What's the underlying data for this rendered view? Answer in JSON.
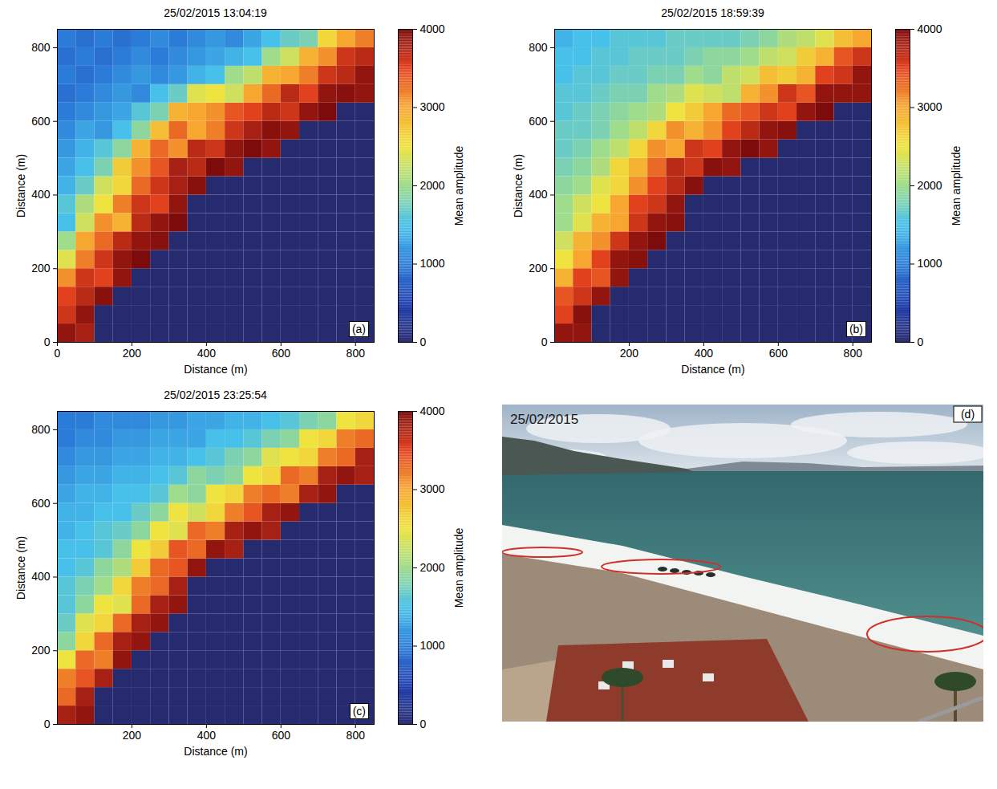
{
  "chart_data": [
    {
      "type": "heatmap",
      "title": "25/02/2015 13:04:19",
      "panel": "(a)",
      "x_label": "Distance (m)",
      "y_label": "Distance (m)",
      "xlim": [
        0,
        850
      ],
      "ylim": [
        0,
        850
      ],
      "xticks": [
        0,
        200,
        400,
        600,
        800
      ],
      "yticks": [
        0,
        200,
        400,
        600,
        800
      ],
      "x": [
        25,
        75,
        125,
        175,
        225,
        275,
        325,
        375,
        425,
        475,
        525,
        575,
        625,
        675,
        725,
        775,
        825
      ],
      "y": [
        25,
        75,
        125,
        175,
        225,
        275,
        325,
        375,
        425,
        475,
        525,
        575,
        625,
        675,
        725,
        775,
        825
      ],
      "cells": [
        [
          3900,
          3800,
          0,
          0,
          0,
          0,
          0,
          0,
          0,
          0,
          0,
          0,
          0,
          0,
          0,
          0,
          0
        ],
        [
          3600,
          3900,
          0,
          0,
          0,
          0,
          0,
          0,
          0,
          0,
          0,
          0,
          0,
          0,
          0,
          0,
          0
        ],
        [
          3500,
          3700,
          3950,
          0,
          0,
          0,
          0,
          0,
          0,
          0,
          0,
          0,
          0,
          0,
          0,
          0,
          0
        ],
        [
          3100,
          3600,
          3500,
          3900,
          0,
          0,
          0,
          0,
          0,
          0,
          0,
          0,
          0,
          0,
          0,
          0,
          0
        ],
        [
          2400,
          3200,
          3600,
          3900,
          4000,
          0,
          0,
          0,
          0,
          0,
          0,
          0,
          0,
          0,
          0,
          0,
          0
        ],
        [
          2000,
          3000,
          3300,
          3700,
          3900,
          3950,
          0,
          0,
          0,
          0,
          0,
          0,
          0,
          0,
          0,
          0,
          0
        ],
        [
          1500,
          2300,
          3100,
          2900,
          3700,
          3900,
          4000,
          0,
          0,
          0,
          0,
          0,
          0,
          0,
          0,
          0,
          0
        ],
        [
          1600,
          2100,
          2500,
          3200,
          3600,
          3500,
          3900,
          0,
          0,
          0,
          0,
          0,
          0,
          0,
          0,
          0,
          0
        ],
        [
          1400,
          1700,
          2300,
          2600,
          3300,
          3600,
          3800,
          3950,
          0,
          0,
          0,
          0,
          0,
          0,
          0,
          0,
          0
        ],
        [
          1300,
          1500,
          1800,
          2700,
          3100,
          3400,
          3800,
          3700,
          4000,
          3900,
          0,
          0,
          0,
          0,
          0,
          0,
          0
        ],
        [
          1200,
          1400,
          1600,
          1900,
          2900,
          3300,
          3100,
          3700,
          3600,
          3900,
          4000,
          3900,
          0,
          0,
          0,
          0,
          0
        ],
        [
          1100,
          1300,
          1200,
          1500,
          1900,
          2800,
          3300,
          3000,
          3200,
          3600,
          3800,
          3950,
          3900,
          0,
          0,
          0,
          0
        ],
        [
          1000,
          1100,
          1200,
          1300,
          1600,
          1800,
          2900,
          3000,
          3100,
          3400,
          3500,
          3700,
          3600,
          3900,
          4000,
          0,
          0
        ],
        [
          900,
          1000,
          1100,
          1200,
          1100,
          1500,
          1700,
          2400,
          2500,
          2300,
          3000,
          3300,
          3700,
          3500,
          3900,
          3950,
          3900
        ],
        [
          1000,
          900,
          1000,
          1100,
          1200,
          1100,
          1200,
          1400,
          1500,
          2000,
          2200,
          2900,
          3000,
          3200,
          3600,
          3700,
          3900
        ],
        [
          900,
          1000,
          900,
          1000,
          1100,
          1000,
          1100,
          1200,
          1300,
          1400,
          1500,
          2000,
          2300,
          2900,
          3100,
          3600,
          3700
        ],
        [
          1000,
          900,
          1000,
          900,
          1000,
          1100,
          1000,
          1100,
          1200,
          1100,
          1300,
          1500,
          1700,
          1800,
          2600,
          3000,
          3200
        ]
      ],
      "colorbar": {
        "label": "Mean amplitude",
        "range": [
          0,
          4000
        ],
        "ticks": [
          0,
          1000,
          2000,
          3000,
          4000
        ]
      }
    },
    {
      "type": "heatmap",
      "title": "25/02/2015 18:59:39",
      "panel": "(b)",
      "x_label": "Distance (m)",
      "y_label": "Distance (m)",
      "xlim": [
        0,
        850
      ],
      "ylim": [
        0,
        850
      ],
      "xticks": [
        200,
        400,
        600,
        800
      ],
      "yticks": [
        0,
        200,
        400,
        600,
        800
      ],
      "x": [
        25,
        75,
        125,
        175,
        225,
        275,
        325,
        375,
        425,
        475,
        525,
        575,
        625,
        675,
        725,
        775,
        825
      ],
      "y": [
        25,
        75,
        125,
        175,
        225,
        275,
        325,
        375,
        425,
        475,
        525,
        575,
        625,
        675,
        725,
        775,
        825
      ],
      "cells": [
        [
          3900,
          3900,
          0,
          0,
          0,
          0,
          0,
          0,
          0,
          0,
          0,
          0,
          0,
          0,
          0,
          0,
          0
        ],
        [
          3500,
          3950,
          0,
          0,
          0,
          0,
          0,
          0,
          0,
          0,
          0,
          0,
          0,
          0,
          0,
          0,
          0
        ],
        [
          3400,
          3600,
          3900,
          0,
          0,
          0,
          0,
          0,
          0,
          0,
          0,
          0,
          0,
          0,
          0,
          0,
          0
        ],
        [
          2900,
          3500,
          3400,
          3900,
          0,
          0,
          0,
          0,
          0,
          0,
          0,
          0,
          0,
          0,
          0,
          0,
          0
        ],
        [
          2500,
          3000,
          3500,
          3900,
          3950,
          0,
          0,
          0,
          0,
          0,
          0,
          0,
          0,
          0,
          0,
          0,
          0
        ],
        [
          2300,
          2900,
          3100,
          3600,
          3900,
          4000,
          0,
          0,
          0,
          0,
          0,
          0,
          0,
          0,
          0,
          0,
          0
        ],
        [
          2000,
          2400,
          2900,
          3000,
          3600,
          3900,
          3950,
          0,
          0,
          0,
          0,
          0,
          0,
          0,
          0,
          0,
          0
        ],
        [
          2000,
          2300,
          2500,
          3000,
          3500,
          3600,
          3900,
          0,
          0,
          0,
          0,
          0,
          0,
          0,
          0,
          0,
          0
        ],
        [
          1900,
          2000,
          2400,
          2600,
          3100,
          3500,
          3700,
          3950,
          0,
          0,
          0,
          0,
          0,
          0,
          0,
          0,
          0
        ],
        [
          1800,
          1900,
          2100,
          2600,
          2900,
          3300,
          3700,
          3600,
          3950,
          3900,
          0,
          0,
          0,
          0,
          0,
          0,
          0
        ],
        [
          1700,
          1800,
          2000,
          2200,
          2600,
          3100,
          3000,
          3600,
          3500,
          3900,
          4000,
          3900,
          0,
          0,
          0,
          0,
          0
        ],
        [
          1700,
          1700,
          1800,
          2000,
          2200,
          2600,
          3100,
          2900,
          3100,
          3500,
          3700,
          3900,
          3950,
          0,
          0,
          0,
          0
        ],
        [
          1600,
          1700,
          1800,
          1900,
          2000,
          2100,
          2500,
          2700,
          3000,
          3300,
          3400,
          3600,
          3500,
          3900,
          4000,
          0,
          0
        ],
        [
          1600,
          1600,
          1700,
          1800,
          1800,
          2000,
          2100,
          2400,
          2300,
          2200,
          2900,
          3100,
          3600,
          3400,
          3900,
          3900,
          3900
        ],
        [
          1500,
          1600,
          1600,
          1700,
          1700,
          1800,
          1800,
          2000,
          1900,
          2200,
          2300,
          2800,
          2700,
          2900,
          3500,
          3600,
          3900
        ],
        [
          1500,
          1500,
          1600,
          1600,
          1700,
          1700,
          1700,
          1800,
          1900,
          1900,
          2000,
          2200,
          2300,
          2700,
          2900,
          3400,
          3600
        ],
        [
          1400,
          1500,
          1500,
          1600,
          1600,
          1600,
          1700,
          1700,
          1700,
          1700,
          1800,
          1900,
          2100,
          2200,
          2400,
          2800,
          3000
        ]
      ],
      "colorbar": {
        "label": "Mean amplitude",
        "range": [
          0,
          4000
        ],
        "ticks": [
          0,
          1000,
          2000,
          3000,
          4000
        ]
      }
    },
    {
      "type": "heatmap",
      "title": "25/02/2015 23:25:54",
      "panel": "(c)",
      "x_label": "Distance (m)",
      "y_label": "Distance (m)",
      "xlim": [
        0,
        850
      ],
      "ylim": [
        0,
        850
      ],
      "xticks": [
        200,
        400,
        600,
        800
      ],
      "yticks": [
        0,
        200,
        400,
        600,
        800
      ],
      "x": [
        25,
        75,
        125,
        175,
        225,
        275,
        325,
        375,
        425,
        475,
        525,
        575,
        625,
        675,
        725,
        775,
        825
      ],
      "y": [
        25,
        75,
        125,
        175,
        225,
        275,
        325,
        375,
        425,
        475,
        525,
        575,
        625,
        675,
        725,
        775,
        825
      ],
      "cells": [
        [
          3800,
          3900,
          0,
          0,
          0,
          0,
          0,
          0,
          0,
          0,
          0,
          0,
          0,
          0,
          0,
          0,
          0
        ],
        [
          3300,
          3800,
          0,
          0,
          0,
          0,
          0,
          0,
          0,
          0,
          0,
          0,
          0,
          0,
          0,
          0,
          0
        ],
        [
          3200,
          3400,
          3800,
          0,
          0,
          0,
          0,
          0,
          0,
          0,
          0,
          0,
          0,
          0,
          0,
          0,
          0
        ],
        [
          2500,
          3300,
          3200,
          3900,
          0,
          0,
          0,
          0,
          0,
          0,
          0,
          0,
          0,
          0,
          0,
          0,
          0
        ],
        [
          1900,
          2600,
          3300,
          3800,
          3900,
          0,
          0,
          0,
          0,
          0,
          0,
          0,
          0,
          0,
          0,
          0,
          0
        ],
        [
          1700,
          2400,
          2600,
          3300,
          3800,
          3900,
          0,
          0,
          0,
          0,
          0,
          0,
          0,
          0,
          0,
          0,
          0
        ],
        [
          1600,
          1900,
          2500,
          2400,
          3300,
          3800,
          3900,
          0,
          0,
          0,
          0,
          0,
          0,
          0,
          0,
          0,
          0
        ],
        [
          1600,
          1800,
          2000,
          2600,
          3200,
          3300,
          3800,
          0,
          0,
          0,
          0,
          0,
          0,
          0,
          0,
          0,
          0
        ],
        [
          1500,
          1600,
          1900,
          2100,
          2700,
          3300,
          3400,
          3900,
          0,
          0,
          0,
          0,
          0,
          0,
          0,
          0,
          0
        ],
        [
          1500,
          1500,
          1600,
          1900,
          2500,
          2700,
          3400,
          3300,
          3900,
          3800,
          0,
          0,
          0,
          0,
          0,
          0,
          0
        ],
        [
          1400,
          1500,
          1600,
          1700,
          1900,
          2500,
          2400,
          3300,
          3200,
          3800,
          3900,
          3800,
          0,
          0,
          0,
          0,
          0
        ],
        [
          1400,
          1400,
          1500,
          1500,
          1700,
          1900,
          2500,
          2300,
          2600,
          3200,
          3400,
          3800,
          3900,
          0,
          0,
          0,
          0
        ],
        [
          1300,
          1400,
          1400,
          1500,
          1500,
          1600,
          2000,
          1900,
          2500,
          2600,
          3200,
          3300,
          3200,
          3800,
          3900,
          0,
          0
        ],
        [
          1200,
          1300,
          1300,
          1400,
          1400,
          1500,
          1600,
          1900,
          1800,
          1900,
          2500,
          2600,
          3300,
          3200,
          3800,
          3900,
          3800
        ],
        [
          1100,
          1200,
          1200,
          1300,
          1300,
          1400,
          1400,
          1500,
          1600,
          1800,
          1900,
          2400,
          2500,
          2600,
          3200,
          3300,
          3800
        ],
        [
          1000,
          1100,
          1100,
          1200,
          1200,
          1300,
          1300,
          1300,
          1500,
          1500,
          1600,
          1800,
          1900,
          2500,
          2600,
          3200,
          3300
        ],
        [
          1000,
          1000,
          1100,
          1100,
          1100,
          1200,
          1200,
          1300,
          1300,
          1400,
          1400,
          1500,
          1600,
          1800,
          1900,
          2500,
          2600
        ]
      ],
      "colorbar": {
        "label": "Mean amplitude",
        "range": [
          0,
          4000
        ],
        "ticks": [
          0,
          1000,
          2000,
          3000,
          4000
        ]
      }
    }
  ],
  "photo": {
    "date": "25/02/2015",
    "panel": "(d)"
  }
}
